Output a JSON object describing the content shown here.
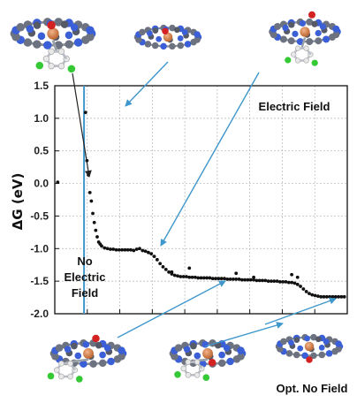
{
  "chart_data": {
    "type": "scatter",
    "title": "",
    "xlabel": "",
    "ylabel": "ΔG (eV)",
    "ylim": [
      -2.0,
      1.5
    ],
    "xlim": [
      0,
      100
    ],
    "yticks": [
      "1.5",
      "1.0",
      "0.5",
      "0.0",
      "-0.5",
      "-1.0",
      "-1.5",
      "-2.0"
    ],
    "grid": true,
    "divider_x": 10,
    "colors": {
      "points": "#111111",
      "divider": "#3f97cc",
      "arrows": "#3f97cc"
    },
    "series": [
      {
        "group": "no-field",
        "points": [
          [
            1,
            0.02
          ]
        ]
      },
      {
        "group": "field",
        "points": [
          [
            10.5,
            1.09
          ],
          [
            11,
            0.35
          ],
          [
            11.5,
            0.13
          ],
          [
            12,
            -0.14
          ],
          [
            12.5,
            -0.27
          ],
          [
            13,
            -0.46
          ],
          [
            13.5,
            -0.6
          ],
          [
            14,
            -0.72
          ],
          [
            14.5,
            -0.82
          ],
          [
            15,
            -0.9
          ],
          [
            15.5,
            -0.93
          ],
          [
            16,
            -0.96
          ],
          [
            17,
            -0.99
          ],
          [
            18,
            -1.0
          ],
          [
            19,
            -1.01
          ],
          [
            20,
            -1.01
          ],
          [
            21,
            -1.02
          ],
          [
            22,
            -1.02
          ],
          [
            23,
            -1.02
          ],
          [
            24,
            -1.02
          ],
          [
            25,
            -1.02
          ],
          [
            26,
            -1.02
          ],
          [
            27,
            -1.03
          ],
          [
            28,
            -1.01
          ],
          [
            29,
            -1.0
          ],
          [
            30,
            -1.03
          ],
          [
            31,
            -1.04
          ],
          [
            32,
            -1.06
          ],
          [
            33,
            -1.08
          ],
          [
            34,
            -1.12
          ],
          [
            35,
            -1.17
          ],
          [
            36,
            -1.23
          ],
          [
            37,
            -1.28
          ],
          [
            38,
            -1.32
          ],
          [
            39,
            -1.36
          ],
          [
            40,
            -1.39
          ],
          [
            41,
            -1.41
          ],
          [
            42,
            -1.42
          ],
          [
            43,
            -1.43
          ],
          [
            44,
            -1.43
          ],
          [
            45,
            -1.43
          ],
          [
            46,
            -1.44
          ],
          [
            47,
            -1.44
          ],
          [
            48,
            -1.44
          ],
          [
            49,
            -1.45
          ],
          [
            50,
            -1.45
          ],
          [
            51,
            -1.45
          ],
          [
            52,
            -1.45
          ],
          [
            53,
            -1.45
          ],
          [
            54,
            -1.46
          ],
          [
            55,
            -1.46
          ],
          [
            56,
            -1.46
          ],
          [
            57,
            -1.46
          ],
          [
            58,
            -1.46
          ],
          [
            59,
            -1.47
          ],
          [
            60,
            -1.47
          ],
          [
            61,
            -1.47
          ],
          [
            62,
            -1.47
          ],
          [
            63,
            -1.47
          ],
          [
            64,
            -1.48
          ],
          [
            65,
            -1.48
          ],
          [
            66,
            -1.48
          ],
          [
            67,
            -1.48
          ],
          [
            68,
            -1.48
          ],
          [
            69,
            -1.49
          ],
          [
            70,
            -1.49
          ],
          [
            71,
            -1.49
          ],
          [
            72,
            -1.49
          ],
          [
            73,
            -1.5
          ],
          [
            74,
            -1.5
          ],
          [
            75,
            -1.5
          ],
          [
            76,
            -1.5
          ],
          [
            77,
            -1.51
          ],
          [
            78,
            -1.51
          ],
          [
            79,
            -1.51
          ],
          [
            80,
            -1.52
          ],
          [
            81,
            -1.52
          ],
          [
            82,
            -1.53
          ],
          [
            83,
            -1.55
          ],
          [
            84,
            -1.58
          ],
          [
            85,
            -1.62
          ],
          [
            86,
            -1.66
          ],
          [
            87,
            -1.69
          ],
          [
            88,
            -1.71
          ],
          [
            89,
            -1.72
          ],
          [
            90,
            -1.73
          ],
          [
            91,
            -1.74
          ],
          [
            92,
            -1.74
          ],
          [
            93,
            -1.74
          ],
          [
            94,
            -1.74
          ],
          [
            95,
            -1.74
          ],
          [
            96,
            -1.74
          ],
          [
            97,
            -1.74
          ],
          [
            98,
            -1.74
          ],
          [
            99,
            -1.74
          ]
        ]
      },
      {
        "group": "field-scattered",
        "points": [
          [
            46,
            -1.3
          ],
          [
            40,
            -1.36
          ],
          [
            62,
            -1.38
          ],
          [
            68,
            -1.44
          ],
          [
            81,
            -1.4
          ],
          [
            83,
            -1.44
          ]
        ]
      }
    ],
    "annotations": [
      {
        "id": "no-field",
        "lines": [
          "No",
          "Electric",
          "Field"
        ]
      },
      {
        "id": "field",
        "lines": [
          "Electric Field"
        ]
      },
      {
        "id": "opt",
        "lines": [
          "Opt. No Field"
        ]
      }
    ]
  }
}
